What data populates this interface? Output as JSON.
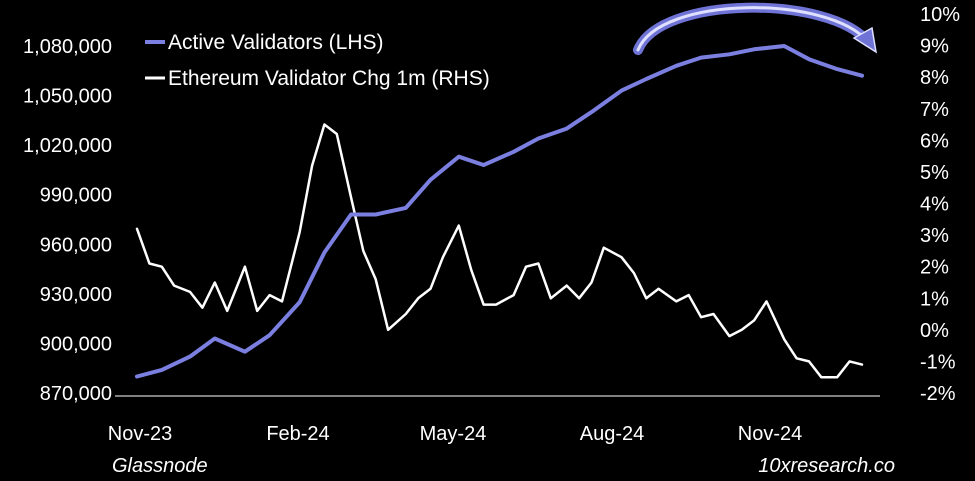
{
  "chart_data": {
    "type": "line",
    "x_ticks": [
      "Nov-23",
      "Feb-24",
      "May-24",
      "Aug-24",
      "Nov-24"
    ],
    "y_left_ticks": [
      "870,000",
      "900,000",
      "930,000",
      "960,000",
      "990,000",
      "1,020,000",
      "1,050,000",
      "1,080,000"
    ],
    "y_left_range": [
      870000,
      1095000
    ],
    "y_right_ticks": [
      "-2%",
      "-1%",
      "0%",
      "1%",
      "2%",
      "3%",
      "4%",
      "5%",
      "6%",
      "7%",
      "8%",
      "9%",
      "10%"
    ],
    "y_right_range": [
      -2,
      10
    ],
    "grid": false,
    "legend_position": "top-left",
    "series": [
      {
        "name": "Active Validators (LHS)",
        "axis": "left",
        "color": "#7b7fe0",
        "x": [
          "2023-11-01",
          "2023-11-15",
          "2023-12-01",
          "2023-12-15",
          "2024-01-01",
          "2024-01-15",
          "2024-02-01",
          "2024-02-15",
          "2024-03-01",
          "2024-03-15",
          "2024-04-01",
          "2024-04-15",
          "2024-05-01",
          "2024-05-15",
          "2024-06-01",
          "2024-06-15",
          "2024-07-01",
          "2024-07-15",
          "2024-08-01",
          "2024-08-15",
          "2024-09-01",
          "2024-09-15",
          "2024-10-01",
          "2024-10-15",
          "2024-11-01",
          "2024-11-15",
          "2024-12-01",
          "2024-12-15"
        ],
        "values": [
          880000,
          884000,
          892000,
          903000,
          895000,
          905000,
          925000,
          955000,
          978000,
          978000,
          982000,
          999000,
          1013000,
          1008000,
          1016000,
          1024000,
          1030000,
          1040000,
          1053000,
          1060000,
          1068000,
          1073000,
          1075000,
          1078000,
          1080000,
          1072000,
          1066000,
          1062000
        ]
      },
      {
        "name": "Ethereum Validator Chg 1m (RHS)",
        "axis": "right",
        "color": "#ffffff",
        "x": [
          "2023-11-01",
          "2023-11-08",
          "2023-11-15",
          "2023-11-22",
          "2023-12-01",
          "2023-12-08",
          "2023-12-15",
          "2023-12-22",
          "2024-01-01",
          "2024-01-08",
          "2024-01-15",
          "2024-01-22",
          "2024-02-01",
          "2024-02-08",
          "2024-02-15",
          "2024-02-22",
          "2024-03-01",
          "2024-03-08",
          "2024-03-15",
          "2024-03-22",
          "2024-04-01",
          "2024-04-08",
          "2024-04-15",
          "2024-04-22",
          "2024-05-01",
          "2024-05-08",
          "2024-05-15",
          "2024-05-22",
          "2024-06-01",
          "2024-06-08",
          "2024-06-15",
          "2024-06-22",
          "2024-07-01",
          "2024-07-08",
          "2024-07-15",
          "2024-07-22",
          "2024-08-01",
          "2024-08-08",
          "2024-08-15",
          "2024-08-22",
          "2024-09-01",
          "2024-09-08",
          "2024-09-15",
          "2024-09-22",
          "2024-10-01",
          "2024-10-08",
          "2024-10-15",
          "2024-10-22",
          "2024-11-01",
          "2024-11-08",
          "2024-11-15",
          "2024-11-22",
          "2024-12-01",
          "2024-12-08",
          "2024-12-15"
        ],
        "values": [
          3.2,
          2.1,
          2.0,
          1.4,
          1.2,
          0.7,
          1.5,
          0.6,
          2.0,
          0.6,
          1.1,
          0.9,
          3.1,
          5.2,
          6.5,
          6.2,
          4.2,
          2.5,
          1.6,
          0.0,
          0.5,
          1.0,
          1.3,
          2.3,
          3.3,
          1.9,
          0.8,
          0.8,
          1.1,
          2.0,
          2.1,
          1.0,
          1.4,
          1.0,
          1.5,
          2.6,
          2.3,
          1.8,
          1.0,
          1.3,
          0.9,
          1.1,
          0.4,
          0.5,
          -0.2,
          0.0,
          0.3,
          0.9,
          -0.3,
          -0.9,
          -1.0,
          -1.5,
          -1.5,
          -1.0,
          -1.1
        ]
      }
    ],
    "source_left": "Glassnode",
    "source_right": "10xresearch.co"
  }
}
